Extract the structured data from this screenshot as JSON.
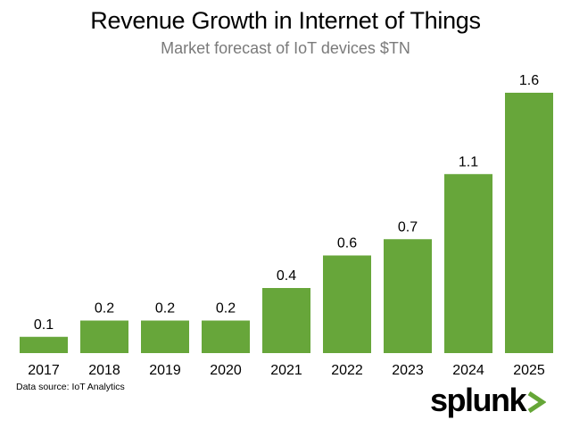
{
  "chart_data": {
    "type": "bar",
    "title": "Revenue Growth in Internet of Things",
    "subtitle": "Market forecast of IoT devices $TN",
    "categories": [
      "2017",
      "2018",
      "2019",
      "2020",
      "2021",
      "2022",
      "2023",
      "2024",
      "2025"
    ],
    "values": [
      0.1,
      0.2,
      0.2,
      0.2,
      0.4,
      0.6,
      0.7,
      1.1,
      1.6
    ],
    "value_labels": [
      "0.1",
      "0.2",
      "0.2",
      "0.2",
      "0.4",
      "0.6",
      "0.7",
      "1.1",
      "1.6"
    ],
    "xlabel": "",
    "ylabel": "",
    "ylim": [
      0,
      1.6
    ],
    "grid": false,
    "bar_color": "#67a63a"
  },
  "footer": {
    "source": "Data source: IoT Analytics",
    "logo_text": "splunk",
    "logo_chevron_color": "#65a637"
  }
}
